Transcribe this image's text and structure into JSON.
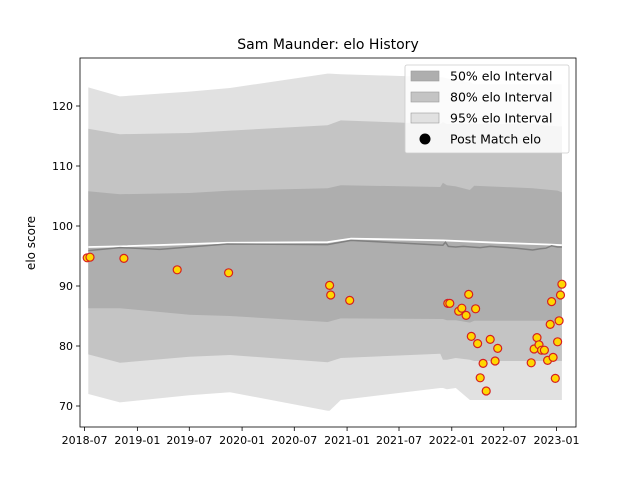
{
  "chart_data": {
    "type": "scatter",
    "title": "Sam Maunder: elo History",
    "xlabel": "",
    "ylabel": "elo score",
    "x_axis_type": "date",
    "xlim": [
      "2018-06-15",
      "2023-03-10"
    ],
    "ylim": [
      66.5,
      128.0
    ],
    "x_ticks": [
      "2018-07",
      "2019-01",
      "2019-07",
      "2020-01",
      "2020-07",
      "2021-01",
      "2021-07",
      "2022-01",
      "2022-07",
      "2023-01"
    ],
    "x_tick_labels": [
      "2018-07",
      "2019-01",
      "2019-07",
      "2020-01",
      "2020-07",
      "2021-01",
      "2021-07",
      "2022-01",
      "2022-07",
      "2023-01"
    ],
    "y_ticks": [
      70,
      80,
      90,
      100,
      110,
      120
    ],
    "y_tick_labels": [
      "70",
      "80",
      "90",
      "100",
      "110",
      "120"
    ],
    "grid": false,
    "legend_position": "top-right",
    "legend": [
      {
        "label": "50% elo Interval",
        "kind": "band",
        "color": "#aeaeae"
      },
      {
        "label": "80% elo Interval",
        "kind": "band",
        "color": "#c4c4c4"
      },
      {
        "label": "95% elo Interval",
        "kind": "band",
        "color": "#e1e1e1"
      },
      {
        "label": "Post Match elo",
        "kind": "marker",
        "color": "#000000"
      }
    ],
    "colors": {
      "band_50": "#aeaeae",
      "band_80": "#c4c4c4",
      "band_95": "#e1e1e1",
      "marker_face": "#ffd700",
      "marker_edge": "#d62020",
      "mean_line": "#808080",
      "reference_line": "#ffffff"
    },
    "series": [
      {
        "name": "50% elo Interval",
        "kind": "band",
        "x": [
          "2018-07-14",
          "2018-11-01",
          "2019-07-01",
          "2019-11-20",
          "2020-10-25",
          "2020-12-10",
          "2021-11-22",
          "2021-12-01",
          "2021-12-15",
          "2022-01-15",
          "2022-03-05",
          "2022-03-20",
          "2022-10-10",
          "2022-11-20",
          "2023-01-05",
          "2023-01-20"
        ],
        "lower": [
          86.3,
          86.3,
          85.2,
          85.0,
          84.0,
          84.6,
          84.5,
          84.5,
          84.3,
          84.3,
          83.9,
          84.2,
          84.2,
          84.2,
          84.2,
          84.2
        ],
        "upper": [
          105.8,
          105.3,
          105.5,
          105.9,
          106.3,
          106.8,
          106.5,
          107.2,
          106.8,
          106.6,
          106.0,
          106.7,
          106.3,
          106.1,
          105.9,
          105.6
        ]
      },
      {
        "name": "80% elo Interval",
        "kind": "band",
        "x": [
          "2018-07-14",
          "2018-11-01",
          "2019-07-01",
          "2019-11-20",
          "2020-10-25",
          "2020-12-10",
          "2021-11-22",
          "2021-12-01",
          "2021-12-15",
          "2022-01-15",
          "2022-03-05",
          "2022-03-20",
          "2022-10-10",
          "2022-11-20",
          "2023-01-05",
          "2023-01-20"
        ],
        "lower": [
          78.6,
          77.2,
          78.2,
          78.5,
          77.3,
          78.0,
          78.7,
          77.7,
          77.7,
          78.0,
          77.7,
          77.5,
          77.5,
          77.5,
          77.5,
          77.5
        ],
        "upper": [
          116.2,
          115.3,
          115.5,
          115.9,
          116.8,
          117.6,
          117.0,
          117.3,
          117.0,
          117.0,
          117.0,
          117.0,
          117.0,
          116.8,
          116.6,
          116.6
        ]
      },
      {
        "name": "95% elo Interval",
        "kind": "band",
        "x": [
          "2018-07-14",
          "2018-11-01",
          "2019-07-01",
          "2019-11-20",
          "2020-10-25",
          "2020-11-01",
          "2020-12-10",
          "2021-11-22",
          "2021-12-01",
          "2021-12-15",
          "2022-01-15",
          "2022-03-05",
          "2022-03-20",
          "2022-10-10",
          "2022-11-20",
          "2023-01-05",
          "2023-01-20"
        ],
        "lower": [
          72.0,
          70.6,
          71.8,
          72.3,
          69.2,
          69.2,
          71.0,
          73.0,
          73.0,
          72.8,
          73.0,
          71.0,
          71.0,
          71.0,
          71.0,
          71.0,
          71.0
        ],
        "upper": [
          123.1,
          121.6,
          122.4,
          123.0,
          125.4,
          125.4,
          125.3,
          124.8,
          124.8,
          124.6,
          124.2,
          124.0,
          123.6,
          123.6,
          123.6,
          123.6,
          123.6
        ]
      },
      {
        "name": "Mean elo",
        "kind": "line",
        "x": [
          "2018-07-14",
          "2018-11-01",
          "2019-03-20",
          "2019-11-10",
          "2020-10-25",
          "2021-01-15",
          "2021-12-01",
          "2021-12-10",
          "2021-12-20",
          "2022-01-15",
          "2022-02-10",
          "2022-03-10",
          "2022-04-10",
          "2022-05-15",
          "2022-06-15",
          "2022-08-15",
          "2022-09-20",
          "2022-10-10",
          "2022-11-05",
          "2022-11-25",
          "2022-12-15",
          "2023-01-05",
          "2023-01-20"
        ],
        "values": [
          95.9,
          96.4,
          96.1,
          97.0,
          96.9,
          97.6,
          96.8,
          97.3,
          96.6,
          96.5,
          96.6,
          96.5,
          96.4,
          96.6,
          96.5,
          96.3,
          96.1,
          96.0,
          96.2,
          96.3,
          96.7,
          96.5,
          96.5
        ]
      },
      {
        "name": "Reference elo",
        "kind": "line",
        "x": [
          "2018-07-14",
          "2018-11-01",
          "2019-11-10",
          "2020-10-25",
          "2021-01-15",
          "2021-12-01",
          "2022-06-15",
          "2022-12-15",
          "2023-01-20"
        ],
        "values": [
          96.5,
          96.6,
          97.2,
          97.3,
          97.9,
          97.6,
          97.2,
          96.9,
          96.8
        ]
      },
      {
        "name": "Post Match elo",
        "kind": "scatter",
        "x": [
          "2018-07-10",
          "2018-07-20",
          "2018-11-15",
          "2019-05-20",
          "2019-11-15",
          "2020-11-01",
          "2020-11-05",
          "2021-01-10",
          "2021-12-18",
          "2021-12-25",
          "2022-01-25",
          "2022-02-05",
          "2022-02-20",
          "2022-03-01",
          "2022-03-10",
          "2022-03-25",
          "2022-04-01",
          "2022-04-10",
          "2022-04-20",
          "2022-05-01",
          "2022-05-15",
          "2022-06-01",
          "2022-06-10",
          "2022-10-05",
          "2022-10-15",
          "2022-10-25",
          "2022-11-01",
          "2022-11-10",
          "2022-11-20",
          "2022-12-01",
          "2022-12-10",
          "2022-12-15",
          "2022-12-20",
          "2022-12-28",
          "2023-01-05",
          "2023-01-10",
          "2023-01-15",
          "2023-01-20"
        ],
        "values": [
          94.7,
          94.8,
          94.6,
          92.7,
          92.2,
          90.1,
          88.5,
          87.6,
          87.1,
          87.1,
          85.8,
          86.3,
          85.1,
          88.6,
          81.6,
          86.2,
          80.4,
          74.7,
          77.1,
          72.5,
          81.1,
          77.5,
          79.6,
          77.2,
          79.5,
          81.4,
          80.2,
          79.3,
          79.3,
          77.6,
          83.6,
          87.4,
          78.1,
          74.6,
          80.7,
          84.2,
          88.5,
          90.3
        ]
      }
    ]
  }
}
